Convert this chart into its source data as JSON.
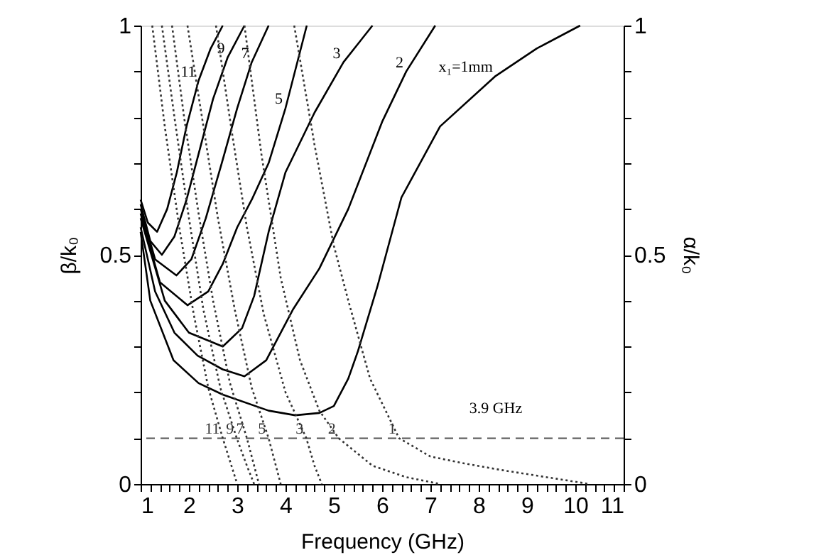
{
  "chart_data": {
    "type": "line",
    "xlabel": "Frequency (GHz)",
    "ylabel": "β/k₀",
    "y2label": "α/k₀",
    "xlim": [
      1,
      11
    ],
    "xticks": [
      1,
      {
        "value": 1.2,
        "label": null
      },
      {
        "value": 1.4,
        "label": null
      },
      {
        "value": 1.6,
        "label": null
      },
      {
        "value": 1.8,
        "label": null
      },
      2,
      {
        "value": 2.2,
        "label": null
      },
      {
        "value": 2.4,
        "label": null
      },
      {
        "value": 2.6,
        "label": null
      },
      {
        "value": 2.8,
        "label": null
      },
      3,
      {
        "value": 3.2,
        "label": null
      },
      {
        "value": 3.4,
        "label": null
      },
      {
        "value": 3.6,
        "label": null
      },
      {
        "value": 3.8,
        "label": null
      },
      4,
      {
        "value": 4.2,
        "label": null
      },
      {
        "value": 4.4,
        "label": null
      },
      {
        "value": 4.6,
        "label": null
      },
      {
        "value": 4.8,
        "label": null
      },
      5,
      {
        "value": 5.2,
        "label": null
      },
      {
        "value": 5.4,
        "label": null
      },
      {
        "value": 5.6,
        "label": null
      },
      {
        "value": 5.8,
        "label": null
      },
      6,
      {
        "value": 6.2,
        "label": null
      },
      {
        "value": 6.4,
        "label": null
      },
      {
        "value": 6.6,
        "label": null
      },
      {
        "value": 6.8,
        "label": null
      },
      7,
      {
        "value": 7.2,
        "label": null
      },
      {
        "value": 7.4,
        "label": null
      },
      {
        "value": 7.6,
        "label": null
      },
      {
        "value": 7.8,
        "label": null
      },
      8,
      {
        "value": 8.2,
        "label": null
      },
      {
        "value": 8.4,
        "label": null
      },
      {
        "value": 8.6,
        "label": null
      },
      {
        "value": 8.8,
        "label": null
      },
      9,
      {
        "value": 9.2,
        "label": null
      },
      {
        "value": 9.4,
        "label": null
      },
      {
        "value": 9.6,
        "label": null
      },
      {
        "value": 9.8,
        "label": null
      },
      10,
      {
        "value": 10.2,
        "label": null
      },
      {
        "value": 10.4,
        "label": null
      },
      {
        "value": 10.6,
        "label": null
      },
      {
        "value": 10.8,
        "label": null
      },
      11
    ],
    "ylim": [
      0,
      1
    ],
    "yticks": [
      0,
      {
        "value": 0.1,
        "label": null
      },
      {
        "value": 0.2,
        "label": null
      },
      {
        "value": 0.3,
        "label": null
      },
      {
        "value": 0.4,
        "label": null
      },
      0.5,
      {
        "value": 0.6,
        "label": null
      },
      {
        "value": 0.7,
        "label": null
      },
      {
        "value": 0.8,
        "label": null
      },
      {
        "value": 0.9,
        "label": null
      },
      1
    ],
    "y2lim": [
      0,
      1
    ],
    "y2ticks": [
      0,
      {
        "value": 0.1,
        "label": null
      },
      {
        "value": 0.2,
        "label": null
      },
      {
        "value": 0.3,
        "label": null
      },
      {
        "value": 0.4,
        "label": null
      },
      0.5,
      {
        "value": 0.6,
        "label": null
      },
      {
        "value": 0.7,
        "label": null
      },
      {
        "value": 0.8,
        "label": null
      },
      {
        "value": 0.9,
        "label": null
      },
      1
    ],
    "grid": false,
    "marker": "none",
    "series": [
      {
        "name": "11",
        "color": "#000000",
        "line_style": "solid",
        "x": [
          1,
          1.15,
          1.34,
          1.55,
          1.75,
          1.95,
          2.2,
          2.45,
          2.7
        ],
        "values": [
          0.62,
          0.57,
          0.55,
          0.6,
          0.68,
          0.78,
          0.88,
          0.95,
          1.0
        ]
      },
      {
        "name": "9",
        "color": "#000000",
        "line_style": "solid",
        "x": [
          1,
          1.2,
          1.44,
          1.7,
          1.95,
          2.2,
          2.5,
          2.8,
          3.15
        ],
        "values": [
          0.61,
          0.53,
          0.5,
          0.54,
          0.62,
          0.72,
          0.84,
          0.93,
          1.0
        ]
      },
      {
        "name": "7",
        "color": "#000000",
        "line_style": "solid",
        "x": [
          1,
          1.3,
          1.74,
          2.05,
          2.35,
          2.68,
          3.0,
          3.3,
          3.65
        ],
        "values": [
          0.6,
          0.49,
          0.455,
          0.49,
          0.58,
          0.7,
          0.82,
          0.92,
          1.0
        ]
      },
      {
        "name": "5",
        "color": "#000000",
        "line_style": "solid",
        "x": [
          1,
          1.4,
          1.97,
          2.4,
          2.7,
          3.0,
          3.3,
          3.65,
          4.0,
          4.44
        ],
        "values": [
          0.59,
          0.44,
          0.39,
          0.42,
          0.48,
          0.56,
          0.62,
          0.7,
          0.82,
          1.0
        ]
      },
      {
        "name": "3",
        "color": "#000000",
        "line_style": "solid",
        "x": [
          1,
          1.5,
          2.0,
          2.7,
          3.1,
          3.35,
          3.65,
          4.0,
          4.6,
          5.2,
          5.8
        ],
        "values": [
          0.58,
          0.4,
          0.33,
          0.3,
          0.34,
          0.41,
          0.55,
          0.68,
          0.81,
          0.92,
          1.0
        ]
      },
      {
        "name": "2",
        "color": "#000000",
        "line_style": "solid",
        "x": [
          1,
          1.3,
          1.7,
          2.18,
          2.7,
          3.15,
          3.6,
          4.15,
          4.7,
          5.3,
          6.0,
          6.5,
          7.1
        ],
        "values": [
          0.56,
          0.42,
          0.33,
          0.28,
          0.25,
          0.235,
          0.27,
          0.38,
          0.47,
          0.6,
          0.79,
          0.9,
          1.0
        ]
      },
      {
        "name": "x₁=1mm",
        "color": "#000000",
        "line_style": "solid",
        "x": [
          1,
          1.2,
          1.68,
          2.2,
          2.7,
          3.65,
          4.2,
          4.7,
          5.0,
          5.3,
          5.5,
          5.9,
          6.4,
          7.2,
          8.35,
          9.2,
          10.1
        ],
        "values": [
          0.55,
          0.4,
          0.27,
          0.22,
          0.195,
          0.16,
          0.15,
          0.155,
          0.17,
          0.23,
          0.29,
          0.43,
          0.625,
          0.78,
          0.89,
          0.95,
          1.0
        ]
      },
      {
        "name": "11",
        "color": "#333333",
        "line_style": "dotted",
        "axis": "y2",
        "x": [
          1.24,
          1.5,
          1.8,
          2.1,
          2.4,
          2.7,
          2.85,
          3.0
        ],
        "values": [
          1,
          0.78,
          0.56,
          0.37,
          0.21,
          0.1,
          0.05,
          0.0
        ]
      },
      {
        "name": "9",
        "color": "#333333",
        "line_style": "dotted",
        "axis": "y2",
        "x": [
          1.44,
          1.7,
          2.0,
          2.3,
          2.65,
          2.99,
          3.2,
          3.35
        ],
        "values": [
          1,
          0.8,
          0.58,
          0.38,
          0.21,
          0.1,
          0.04,
          0.0
        ]
      },
      {
        "name": "7",
        "color": "#333333",
        "line_style": "dotted",
        "axis": "y2",
        "x": [
          1.65,
          1.9,
          2.2,
          2.5,
          2.85,
          3.2,
          3.35,
          3.45
        ],
        "values": [
          1,
          0.8,
          0.59,
          0.4,
          0.22,
          0.1,
          0.04,
          0.0
        ]
      },
      {
        "name": "5",
        "color": "#333333",
        "line_style": "dotted",
        "axis": "y2",
        "x": [
          1.97,
          2.3,
          2.6,
          2.95,
          3.3,
          3.65,
          3.8,
          3.9
        ],
        "values": [
          1,
          0.78,
          0.58,
          0.38,
          0.21,
          0.1,
          0.04,
          0.0
        ]
      },
      {
        "name": "3",
        "color": "#333333",
        "line_style": "dotted",
        "axis": "y2",
        "x": [
          2.56,
          2.9,
          3.2,
          3.55,
          4.0,
          4.43,
          4.6,
          4.75
        ],
        "values": [
          1,
          0.76,
          0.56,
          0.37,
          0.2,
          0.1,
          0.04,
          0.0
        ]
      },
      {
        "name": "2",
        "color": "#333333",
        "line_style": "dotted",
        "axis": "y2",
        "x": [
          3.15,
          3.5,
          3.9,
          4.3,
          4.7,
          5.1,
          5.8,
          6.5,
          7.2
        ],
        "values": [
          1,
          0.72,
          0.45,
          0.27,
          0.16,
          0.1,
          0.04,
          0.015,
          0.0
        ]
      },
      {
        "name": "1",
        "color": "#333333",
        "line_style": "dotted",
        "axis": "y2",
        "x": [
          4.18,
          4.6,
          5.0,
          5.3,
          5.75,
          6.35,
          7.0,
          7.7,
          8.5,
          9.1,
          10.3
        ],
        "values": [
          1,
          0.74,
          0.52,
          0.4,
          0.23,
          0.1,
          0.06,
          0.045,
          0.03,
          0.02,
          0.0
        ]
      }
    ],
    "ref_lines": [
      {
        "axis": "y",
        "value": 0.1,
        "color": "#555555",
        "line_style": "dashed"
      }
    ],
    "annotations": [
      "3.9 GHz"
    ]
  }
}
